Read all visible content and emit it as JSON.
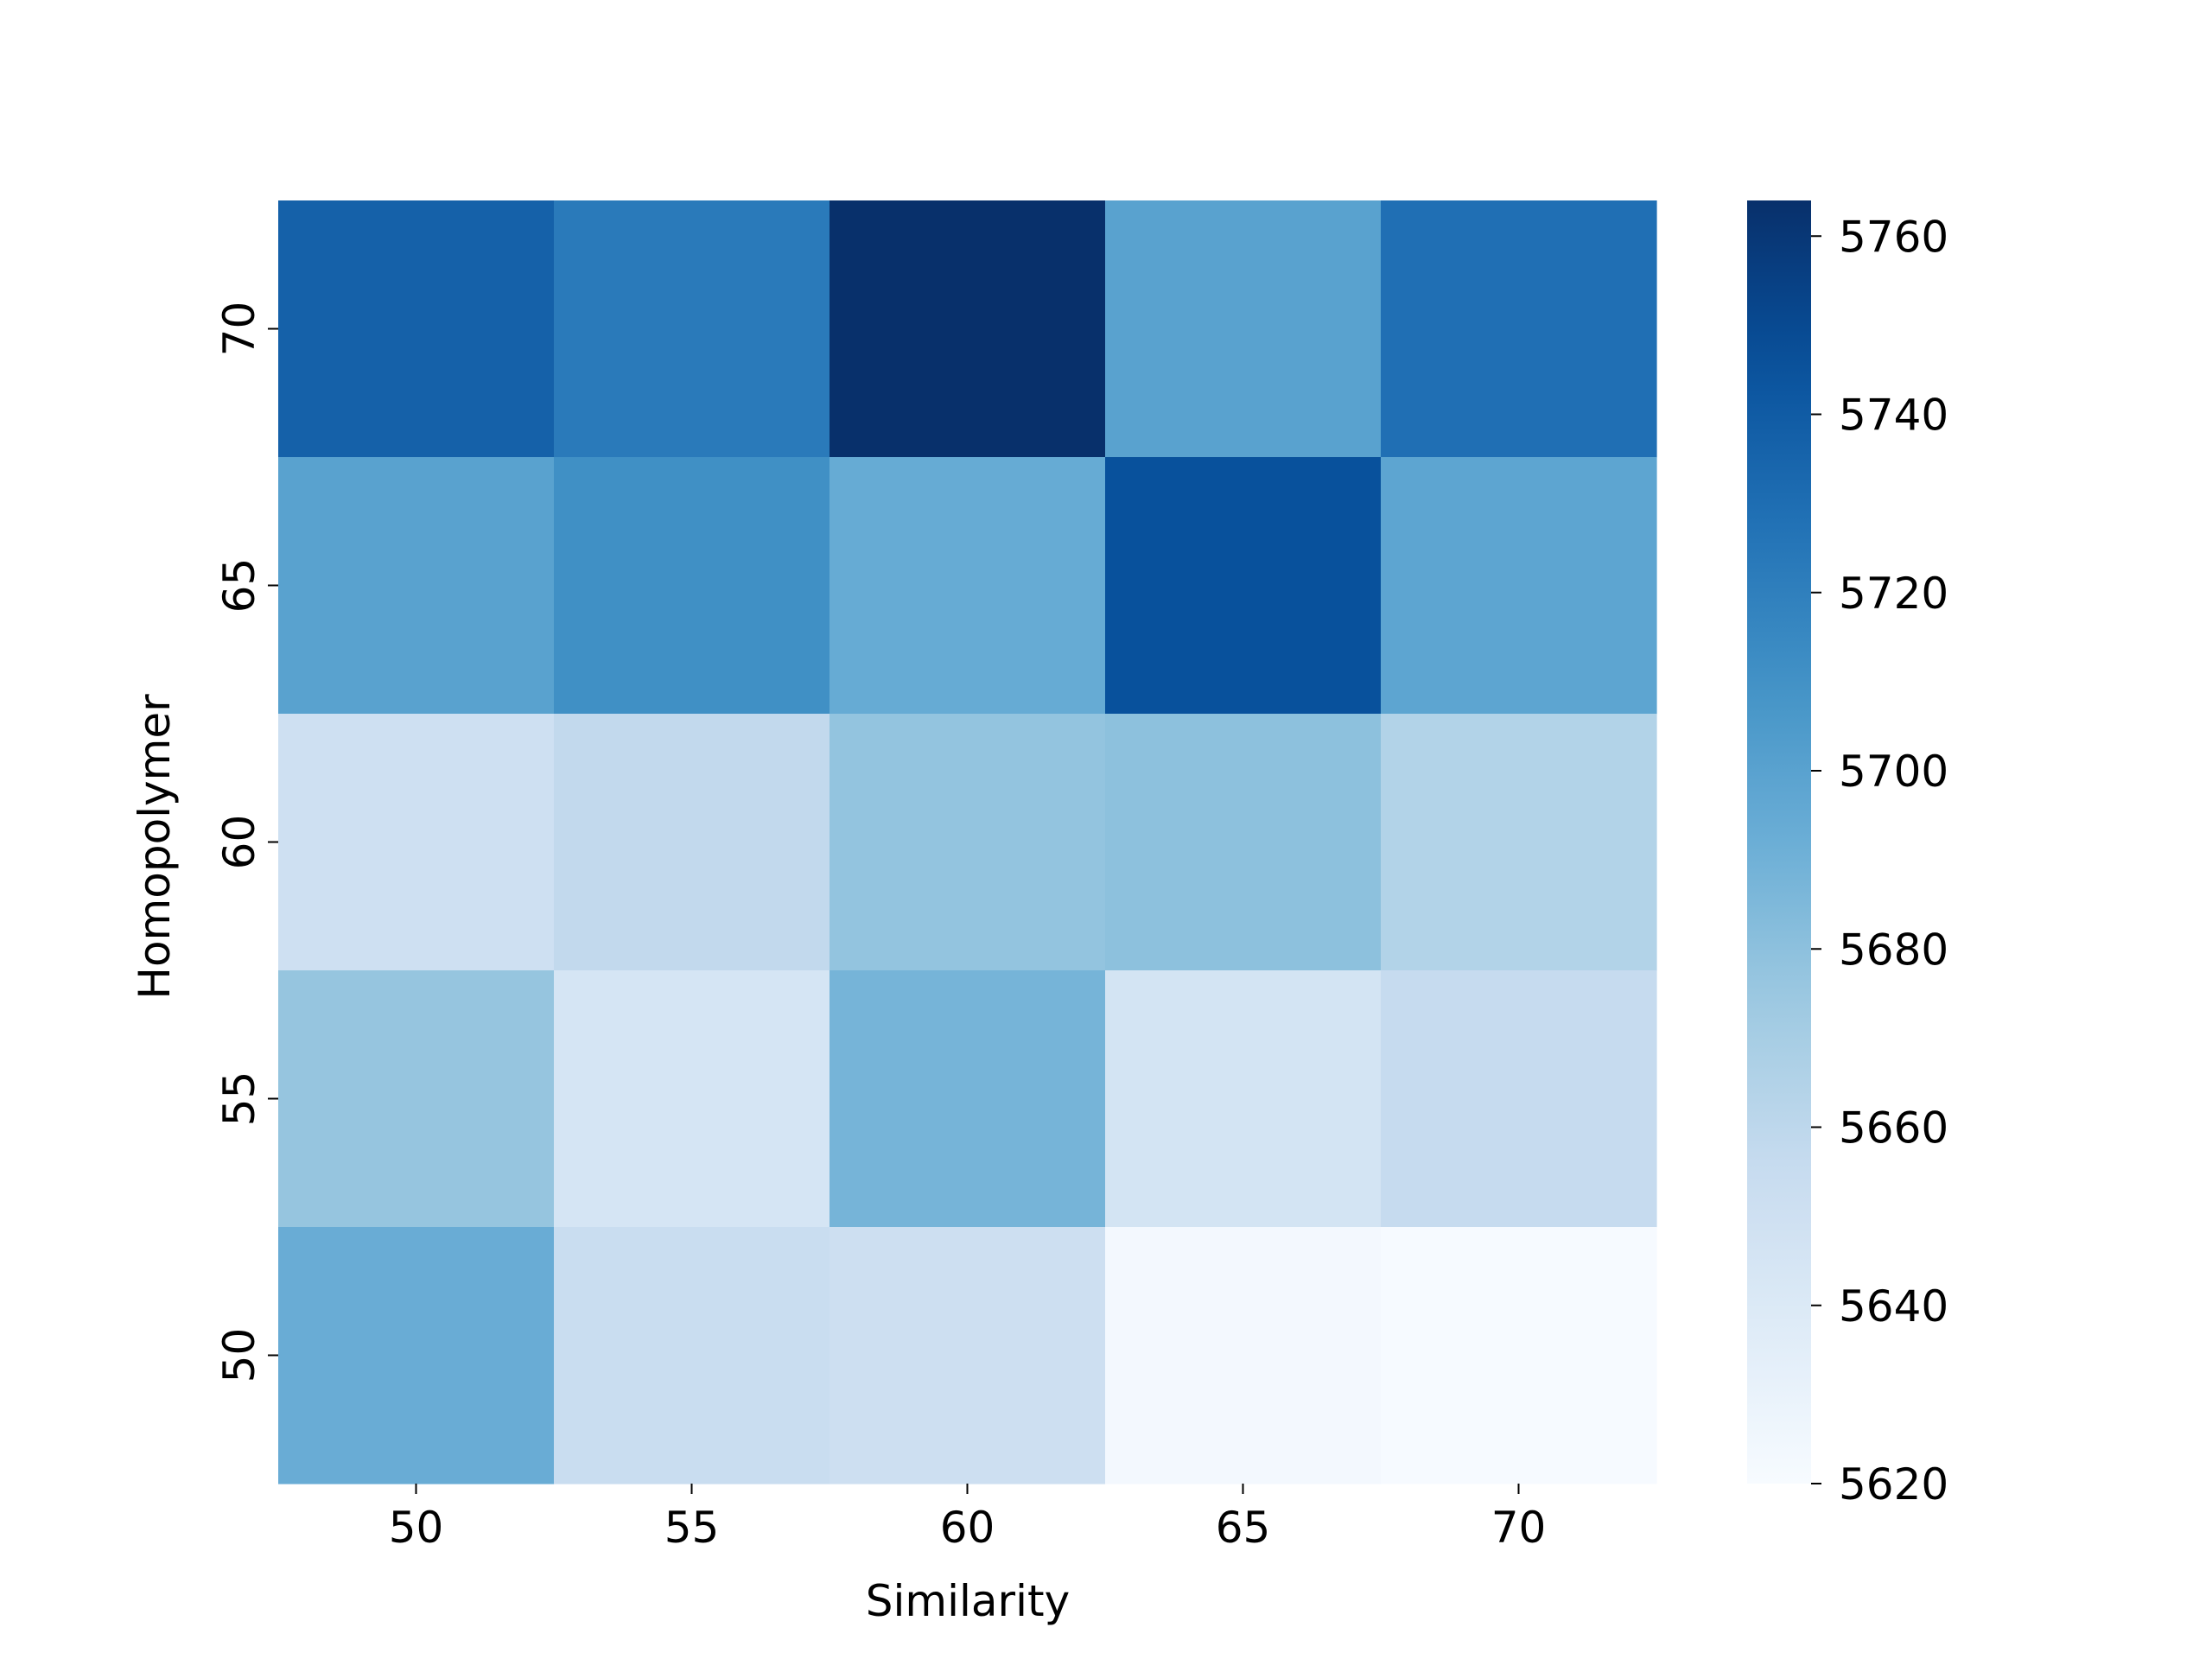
{
  "chart_data": {
    "type": "heatmap",
    "title": "",
    "xlabel": "Similarity",
    "ylabel": "Homopolymer",
    "x_categories": [
      "50",
      "55",
      "60",
      "65",
      "70"
    ],
    "y_categories": [
      "70",
      "65",
      "60",
      "55",
      "50"
    ],
    "values": [
      [
        5737,
        5723,
        5764,
        5700,
        5729
      ],
      [
        5700,
        5711,
        5694,
        5746,
        5698
      ],
      [
        5650,
        5658,
        5678,
        5680,
        5665
      ],
      [
        5677,
        5645,
        5688,
        5646,
        5656
      ],
      [
        5693,
        5654,
        5651,
        5623,
        5621
      ]
    ],
    "colorbar": {
      "min": 5620,
      "max": 5764,
      "ticks": [
        "5620",
        "5640",
        "5660",
        "5680",
        "5700",
        "5720",
        "5740",
        "5760"
      ],
      "colormap": "Blues"
    },
    "grid": false,
    "legend": "colorbar-right"
  }
}
